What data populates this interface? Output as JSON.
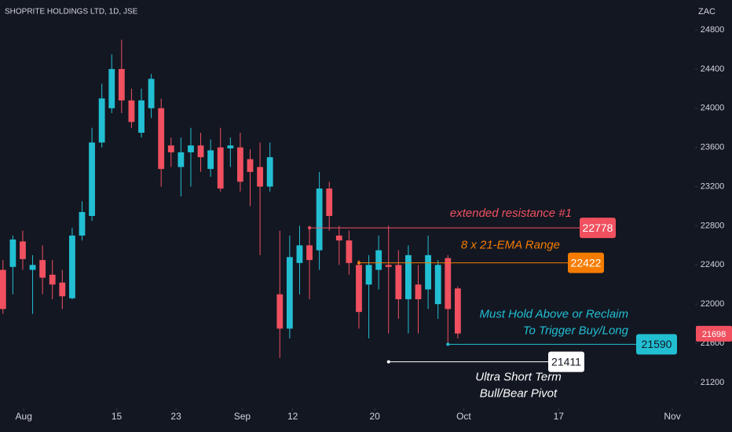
{
  "chart_data": {
    "type": "candlestick",
    "title": "SHOPRITE HOLDINGS LTD, 1D, JSE",
    "currency": "ZAC",
    "up_color": "#22bfd3",
    "down_color": "#f0505f",
    "open": [
      22350,
      22380,
      22640,
      22350,
      22450,
      22300,
      22220,
      22060,
      22700,
      22900,
      23650,
      24000,
      24400,
      24080,
      23750,
      24000,
      24000,
      23620,
      23400,
      23550,
      23620,
      23380,
      23600,
      23590,
      23600,
      23480,
      23400,
      23200,
      22100,
      21750,
      22420,
      22600,
      22550,
      23180,
      22700,
      22650,
      22400,
      22200,
      22350,
      22400,
      22400,
      22050,
      22200,
      22150,
      22000,
      22470,
      22160
    ],
    "high": [
      22450,
      22700,
      22750,
      22500,
      22600,
      22450,
      22350,
      22780,
      23050,
      23800,
      24250,
      24550,
      24700,
      24200,
      24200,
      24350,
      24100,
      23700,
      23700,
      23800,
      23750,
      23680,
      23800,
      23700,
      23750,
      23580,
      23650,
      23650,
      22750,
      22700,
      22800,
      22800,
      23350,
      23250,
      22800,
      22750,
      22450,
      22500,
      22700,
      22800,
      22550,
      22600,
      22400,
      22700,
      22450,
      22500,
      22180
    ],
    "low": [
      21900,
      22100,
      22350,
      21900,
      22100,
      22050,
      21950,
      22050,
      22650,
      22850,
      23600,
      23950,
      23950,
      23800,
      23700,
      23900,
      23200,
      23400,
      23100,
      23200,
      23350,
      23300,
      23150,
      23400,
      23150,
      23000,
      22500,
      23150,
      21450,
      21650,
      22100,
      22050,
      22350,
      22750,
      22400,
      22300,
      21750,
      21650,
      22150,
      21700,
      21850,
      21700,
      21700,
      21950,
      21850,
      21600,
      21650
    ],
    "close": [
      21950,
      22660,
      22460,
      22400,
      22270,
      22200,
      22080,
      22700,
      22940,
      23650,
      24100,
      24400,
      24080,
      23860,
      24080,
      24300,
      23380,
      23550,
      23550,
      23620,
      23500,
      23570,
      23180,
      23620,
      23250,
      23350,
      23200,
      23500,
      21750,
      22480,
      22600,
      22450,
      23180,
      22900,
      22650,
      22420,
      21920,
      22400,
      22550,
      22380,
      22050,
      22500,
      22050,
      22500,
      22400,
      21950,
      21700
    ],
    "last": 21698,
    "xlim": [
      -0.3,
      70
    ],
    "xticks": [
      {
        "value": 2.1,
        "label": "Aug"
      },
      {
        "value": 11.5,
        "label": "15"
      },
      {
        "value": 17.5,
        "label": "23"
      },
      {
        "value": 24.2,
        "label": "Sep"
      },
      {
        "value": 29.3,
        "label": "12"
      },
      {
        "value": 37.6,
        "label": "20"
      },
      {
        "value": 46.6,
        "label": "Oct"
      },
      {
        "value": 56.2,
        "label": "17"
      },
      {
        "value": 67.7,
        "label": "Nov"
      }
    ],
    "ylim": [
      20935,
      25105
    ],
    "yticks": [
      21200,
      21600,
      22000,
      22400,
      22800,
      23200,
      23600,
      24000,
      24400,
      24800
    ],
    "levels": [
      {
        "value": 22778,
        "from": 31,
        "color": "#f0505f",
        "note": [
          "extended resistance #1"
        ]
      },
      {
        "value": 22422,
        "from": 36,
        "color": "#f57c00",
        "note": [
          "8 x 21-EMA Range"
        ]
      },
      {
        "value": 21590,
        "from": 45,
        "color": "#22bfd3",
        "note": [
          "Must Hold Above or Reclaim",
          "To Trigger Buy/Long"
        ]
      },
      {
        "value": 21411,
        "from": 39,
        "color": "#ffffff",
        "note": [
          "Ultra Short Term",
          "Bull/Bear Pivot"
        ]
      }
    ]
  }
}
